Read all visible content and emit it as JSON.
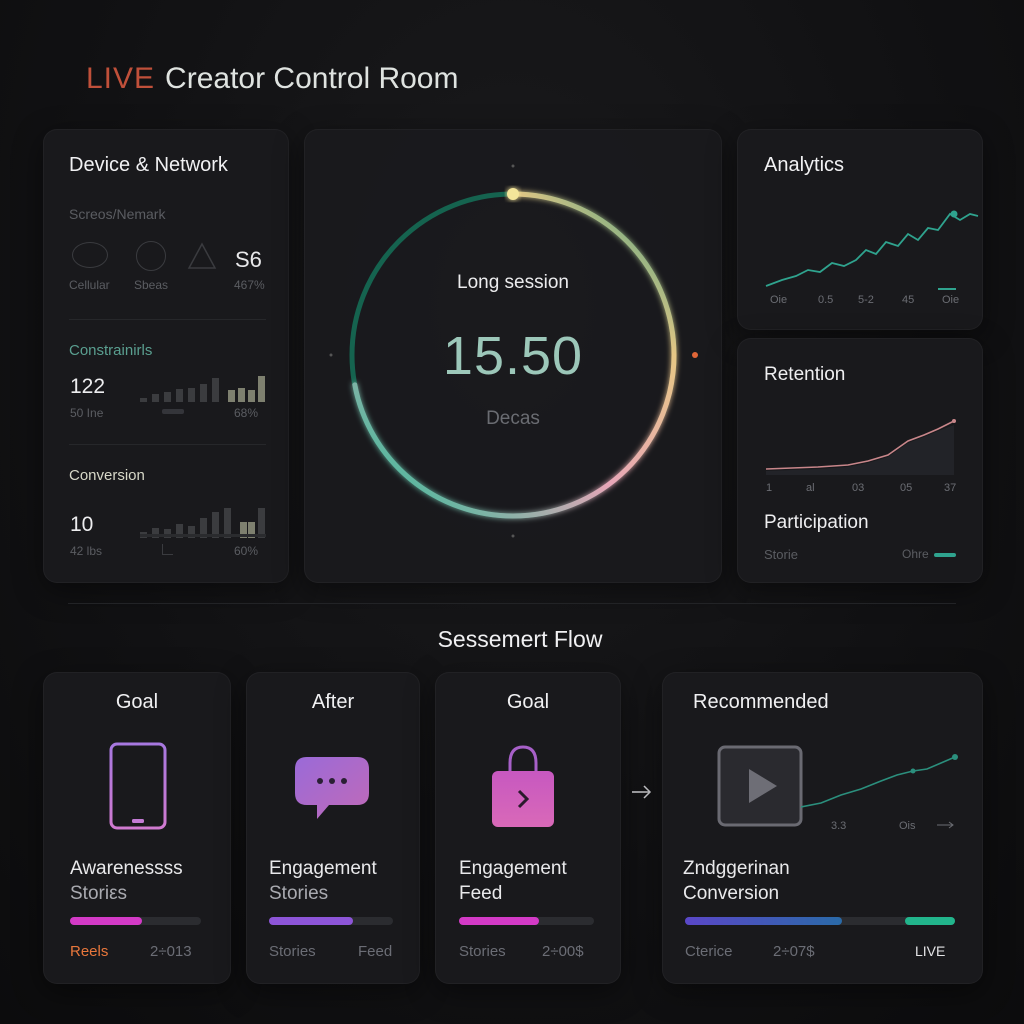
{
  "header": {
    "live_badge": "LIVE",
    "title": "Creator Control Room"
  },
  "device_card": {
    "title": "Device & Network",
    "section_label": "Screos/Nemark",
    "icons": [
      {
        "name": "cellular-icon",
        "label": "Cellular"
      },
      {
        "name": "speed-icon",
        "label": "Sbeas"
      },
      {
        "name": "warning-icon",
        "label": "467%"
      }
    ],
    "signal_value": "S6",
    "constraints": {
      "label": "Constrainirls",
      "value": "122",
      "sub": "50 Ine",
      "percent": "68%"
    },
    "conversion": {
      "label": "Conversion",
      "value": "10",
      "sub": "42 lbs",
      "percent": "60%"
    },
    "colors": {
      "constraints_label": "#5a9f90",
      "conversion_label": "#d7d8c8"
    }
  },
  "session_dial": {
    "label": "Long session",
    "value": "15.50",
    "unit": "Decas",
    "progress": 0.72,
    "colors": {
      "start": "#1fbe95",
      "mid": "#e8a6b8",
      "end": "#e7c785",
      "dot": "#e06638"
    }
  },
  "analytics": {
    "title": "Analytics",
    "ticks": [
      "Oie",
      "0.5",
      "5-2",
      "45",
      "Oie"
    ],
    "line_color": "#2fa38e"
  },
  "retention": {
    "title": "Retention",
    "ticks": [
      "1",
      "al",
      "03",
      "05",
      "37"
    ],
    "line_color": "#c8868a"
  },
  "participation": {
    "title": "Participation",
    "left_label": "Storie",
    "right_label": "Ohre"
  },
  "flow": {
    "title": "Sessemert Flow",
    "steps": [
      {
        "header": "Goal",
        "icon": "tablet-icon",
        "title": "Awarenessss",
        "sub": "Storiεs",
        "progress": 0.55,
        "fill": "#d33ac6",
        "footer_left": "Reels",
        "footer_right": "2÷013",
        "footer_left_color": "#e8773c"
      },
      {
        "header": "After",
        "icon": "chat-bubble-icon",
        "title": "Engagement",
        "sub": "Stories",
        "progress": 0.68,
        "fill": "#8d55d8",
        "footer_left": "Stories",
        "footer_right": "Feed",
        "footer_left_color": "#6b6d75"
      },
      {
        "header": "Goal",
        "icon": "shopping-bag-icon",
        "title": "Engagement",
        "sub": "Feed",
        "progress": 0.59,
        "fill": "#d33ac6",
        "footer_left": "Stories",
        "footer_right": "2÷00$",
        "footer_left_color": "#6b6d75"
      },
      {
        "header": "Recommended",
        "icon": "play-video-icon",
        "title": "Zndggerinan",
        "sub": "Conversion",
        "progress": 0.58,
        "fill": "#5a47c8",
        "footer_left": "Cterice",
        "footer_right": "2÷07$",
        "footer_left_color": "#6b6d75",
        "badge": "LIVE",
        "chart_ticks": [
          "3.3",
          "Ois"
        ]
      }
    ]
  }
}
